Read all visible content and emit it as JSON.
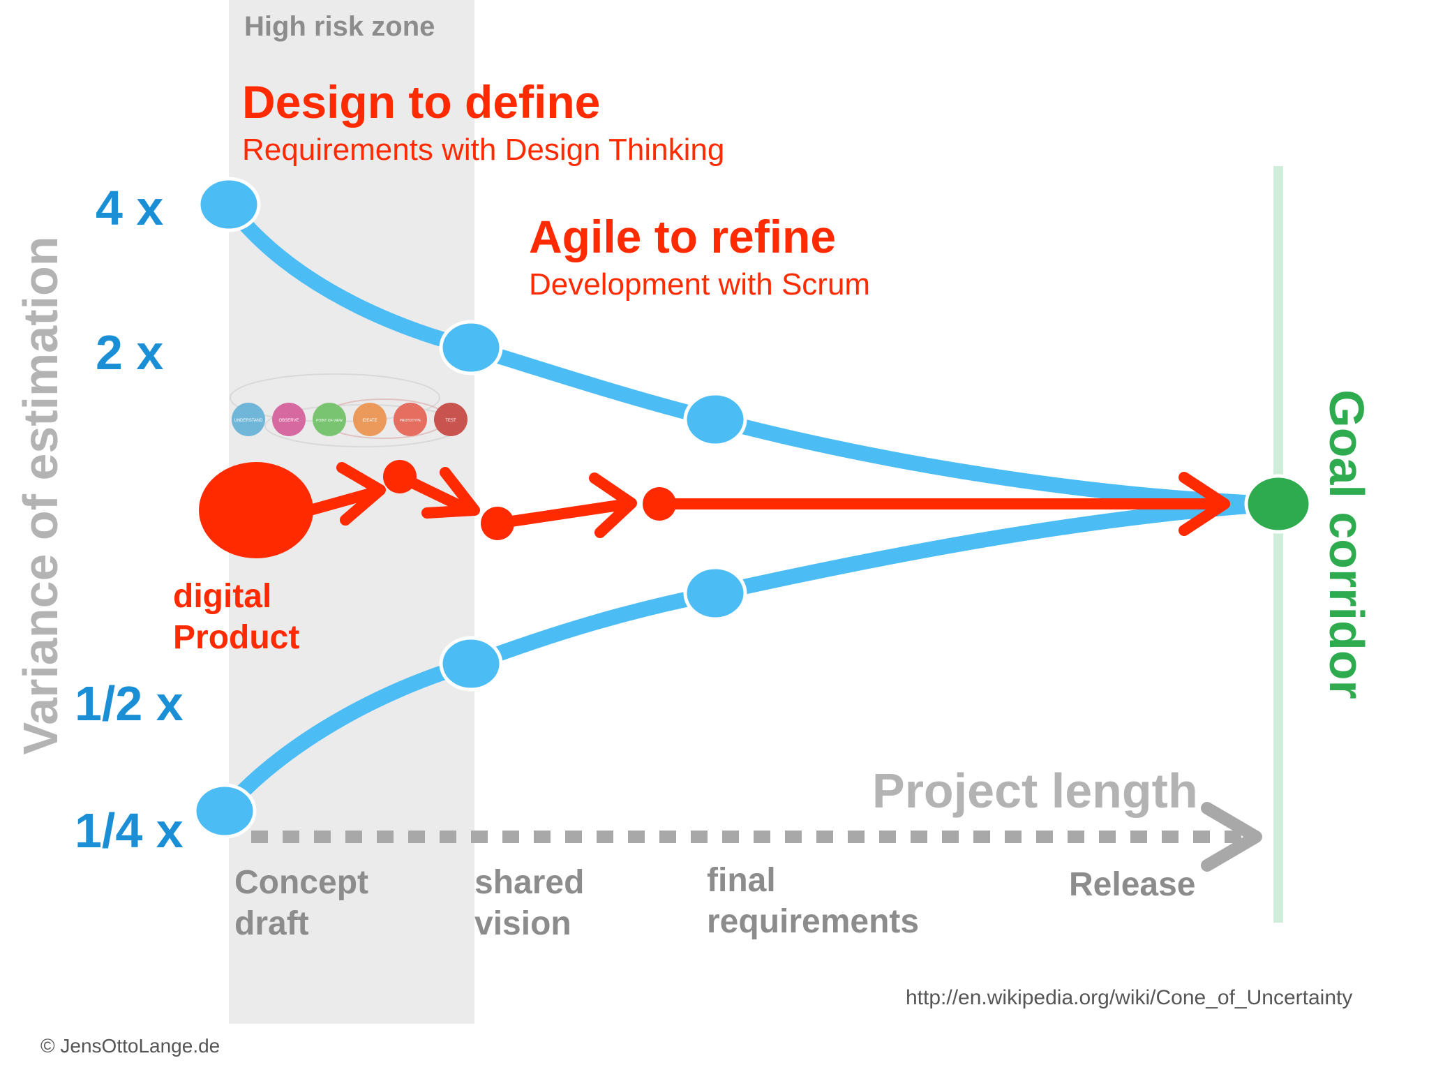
{
  "zone": {
    "label": "High risk zone"
  },
  "design": {
    "title": "Design to define",
    "subtitle": "Requirements with Design Thinking"
  },
  "agile": {
    "title": "Agile to refine",
    "subtitle": "Development with Scrum"
  },
  "variance_labels": [
    "4 x",
    "2 x",
    "1/2 x",
    "1/4 x"
  ],
  "y_axis_label": "Variance of estimation",
  "goal_label": "Goal corridor",
  "x_axis_label": "Project length",
  "milestones": {
    "concept_line1": "Concept",
    "concept_line2": "draft",
    "shared_line1": "shared",
    "shared_line2": "vision",
    "final_line1": "final",
    "final_line2": "requirements",
    "release": "Release"
  },
  "product": {
    "line1": "digital",
    "line2": "Product"
  },
  "dt_phases": [
    "UNDERSTAND",
    "OBSERVE",
    "POINT OF VIEW",
    "IDEATE",
    "PROTOTYPE",
    "TEST"
  ],
  "source_url": "http://en.wikipedia.org/wiki/Cone_of_Uncertainty",
  "copyright": "© JensOttoLange.de",
  "colors": {
    "cone": "#4cbcf5",
    "product_path": "#ff2a00",
    "goal": "#2fab4f",
    "corridor": "#cfeed9",
    "axis_arrow": "#a8a8a8",
    "risk_zone": "#ebebeb",
    "dt_phase_colors": [
      "#6fb6d8",
      "#d66aa0",
      "#79c470",
      "#eb9a5b",
      "#e56e61",
      "#c9534f"
    ]
  }
}
